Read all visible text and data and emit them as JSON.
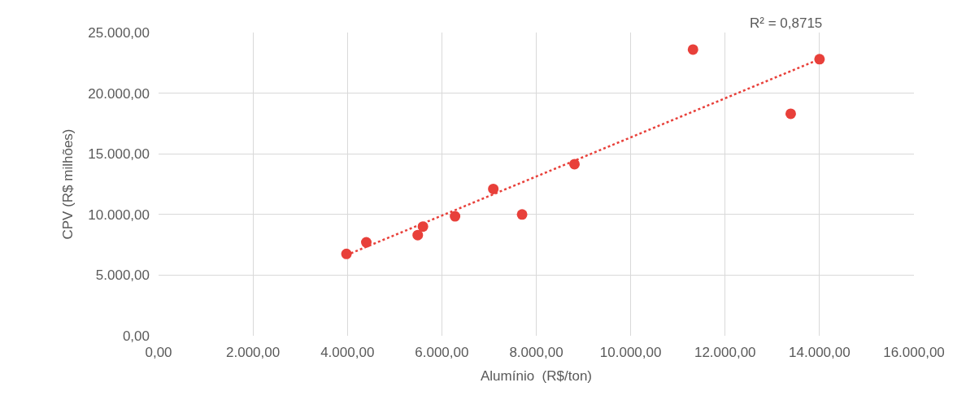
{
  "chart_data": {
    "type": "scatter",
    "xlabel": "Alumínio  (R$/ton)",
    "ylabel": "CPV (R$ milhões)",
    "x": [
      3980,
      4400,
      5490,
      5600,
      6280,
      7090,
      7700,
      8810,
      11320,
      13390,
      14000
    ],
    "series": [
      {
        "color": "#e8403a",
        "marker": "circle",
        "values": [
          6750,
          7700,
          8300,
          9000,
          9850,
          12100,
          10000,
          14150,
          23600,
          18300,
          22800
        ]
      },
      {
        "type": "line",
        "color": "#e8403a",
        "line_style": "dotted",
        "marker": "none",
        "x": [
          3980,
          14000
        ],
        "values": [
          6650,
          22800
        ]
      }
    ],
    "xlim": [
      0,
      16000
    ],
    "ylim": [
      0,
      25000
    ],
    "xticks": [
      {
        "value": 0,
        "label": "0,00"
      },
      {
        "value": 2000,
        "label": "2.000,00"
      },
      {
        "value": 4000,
        "label": "4.000,00"
      },
      {
        "value": 6000,
        "label": "6.000,00"
      },
      {
        "value": 8000,
        "label": "8.000,00"
      },
      {
        "value": 10000,
        "label": "10.000,00"
      },
      {
        "value": 12000,
        "label": "12.000,00"
      },
      {
        "value": 14000,
        "label": "14.000,00"
      },
      {
        "value": 16000,
        "label": "16.000,00"
      }
    ],
    "yticks": [
      {
        "value": 0,
        "label": "0,00"
      },
      {
        "value": 5000,
        "label": "5.000,00"
      },
      {
        "value": 10000,
        "label": "10.000,00"
      },
      {
        "value": 15000,
        "label": "15.000,00"
      },
      {
        "value": 20000,
        "label": "20.000,00"
      },
      {
        "value": 25000,
        "label": "25.000,00"
      }
    ],
    "grid": true,
    "annotations": [
      "R² = 0,8715"
    ]
  }
}
